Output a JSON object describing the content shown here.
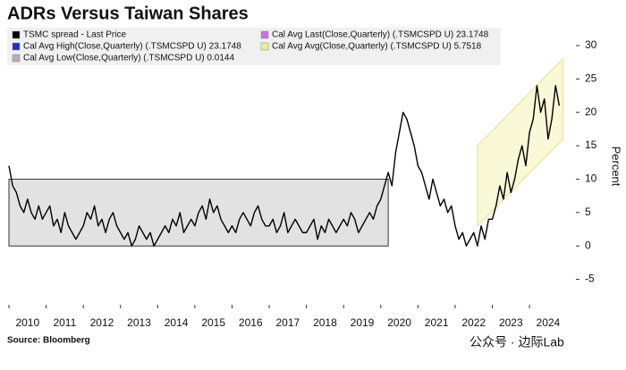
{
  "chart_data": {
    "type": "line",
    "title": "ADRs Versus Taiwan Shares",
    "source": "Source: Bloomberg",
    "watermark": "公众号 · 边际Lab",
    "y_label": "Percent",
    "legend_entries": [
      {
        "label": "TSMC spread - Last Price",
        "color": "#000000"
      },
      {
        "label": "Cal Avg Last(Close,Quarterly) (.TSMCSPD U) 23.1748",
        "color": "#d070e0"
      },
      {
        "label": "Cal Avg High(Close,Quarterly) (.TSMCSPD U) 23.1748",
        "color": "#2030c0"
      },
      {
        "label": "Cal Avg Avg(Close,Quarterly) (.TSMCSPD U)  5.7518",
        "color": "#e4f0a0"
      },
      {
        "label": "Cal Avg Low(Close,Quarterly) (.TSMCSPD U)  0.0144",
        "color": "#b0b0b0"
      }
    ],
    "ranges": [
      {
        "color": "#e2e2e2",
        "x": [
          2010,
          2020.2
        ],
        "low": [
          0,
          0
        ],
        "high": [
          10,
          10
        ]
      },
      {
        "color": "#f7f5c6",
        "x": [
          2022.6,
          2024.9
        ],
        "low": [
          3,
          16
        ],
        "high": [
          15,
          28
        ]
      }
    ],
    "x": [
      2010,
      2010.1,
      2010.2,
      2010.3,
      2010.4,
      2010.5,
      2010.6,
      2010.7,
      2010.8,
      2010.9,
      2011,
      2011.1,
      2011.2,
      2011.3,
      2011.4,
      2011.5,
      2011.6,
      2011.7,
      2011.8,
      2011.9,
      2012,
      2012.1,
      2012.2,
      2012.3,
      2012.4,
      2012.5,
      2012.6,
      2012.7,
      2012.8,
      2012.9,
      2013,
      2013.1,
      2013.2,
      2013.3,
      2013.4,
      2013.5,
      2013.6,
      2013.7,
      2013.8,
      2013.9,
      2014,
      2014.1,
      2014.2,
      2014.3,
      2014.4,
      2014.5,
      2014.6,
      2014.7,
      2014.8,
      2014.9,
      2015,
      2015.1,
      2015.2,
      2015.3,
      2015.4,
      2015.5,
      2015.6,
      2015.7,
      2015.8,
      2015.9,
      2016,
      2016.1,
      2016.2,
      2016.3,
      2016.4,
      2016.5,
      2016.6,
      2016.7,
      2016.8,
      2016.9,
      2017,
      2017.1,
      2017.2,
      2017.3,
      2017.4,
      2017.5,
      2017.6,
      2017.7,
      2017.8,
      2017.9,
      2018,
      2018.1,
      2018.2,
      2018.3,
      2018.4,
      2018.5,
      2018.6,
      2018.7,
      2018.8,
      2018.9,
      2019,
      2019.1,
      2019.2,
      2019.3,
      2019.4,
      2019.5,
      2019.6,
      2019.7,
      2019.8,
      2019.9,
      2020,
      2020.1,
      2020.2,
      2020.3,
      2020.4,
      2020.5,
      2020.6,
      2020.7,
      2020.8,
      2020.9,
      2021,
      2021.1,
      2021.2,
      2021.3,
      2021.4,
      2021.5,
      2021.6,
      2021.7,
      2021.8,
      2021.9,
      2022,
      2022.1,
      2022.2,
      2022.3,
      2022.4,
      2022.5,
      2022.6,
      2022.7,
      2022.8,
      2022.9,
      2023,
      2023.1,
      2023.2,
      2023.3,
      2023.4,
      2023.5,
      2023.6,
      2023.7,
      2023.8,
      2023.9,
      2024,
      2024.1,
      2024.2,
      2024.3,
      2024.4,
      2024.5,
      2024.6,
      2024.7,
      2024.8
    ],
    "series": [
      {
        "name": "TSMC spread - Last Price",
        "color": "#000000",
        "values": [
          12,
          9,
          8,
          6,
          5,
          7,
          5,
          4,
          6,
          4,
          5,
          6,
          3,
          4,
          2,
          5,
          3,
          2,
          1,
          2,
          3,
          5,
          4,
          6,
          3,
          4,
          2,
          4,
          5,
          3,
          2,
          1,
          2,
          0,
          1,
          3,
          2,
          1,
          2,
          0,
          1,
          2,
          3,
          2,
          4,
          3,
          5,
          2,
          3,
          4,
          3,
          5,
          6,
          4,
          7,
          5,
          6,
          4,
          3,
          2,
          3,
          2,
          4,
          5,
          4,
          3,
          5,
          6,
          4,
          3,
          3,
          4,
          2,
          3,
          5,
          2,
          3,
          4,
          3,
          2,
          2,
          3,
          4,
          1,
          3,
          2,
          4,
          3,
          2,
          3,
          4,
          3,
          5,
          4,
          2,
          3,
          4,
          5,
          4,
          6,
          7,
          9,
          11,
          9,
          14,
          17,
          20,
          19,
          17,
          15,
          12,
          11,
          9,
          7,
          10,
          8,
          6,
          7,
          5,
          6,
          3,
          1,
          2,
          0,
          1,
          2,
          0,
          3,
          1,
          4,
          4,
          6,
          9,
          7,
          11,
          8,
          10,
          13,
          15,
          12,
          17,
          19,
          24,
          20,
          22,
          16,
          19,
          24,
          21
        ]
      }
    ],
    "xlim": [
      2010,
      2025.2
    ],
    "xticks": [
      2010,
      2011,
      2012,
      2013,
      2014,
      2015,
      2016,
      2017,
      2018,
      2019,
      2020,
      2021,
      2022,
      2023,
      2024
    ],
    "ylim": [
      -8,
      32
    ],
    "yticks": [
      -5,
      0,
      5,
      10,
      15,
      20,
      25,
      30
    ]
  }
}
